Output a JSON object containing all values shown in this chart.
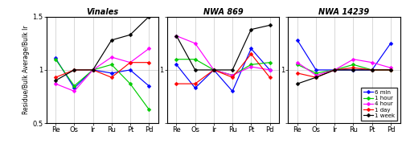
{
  "x_labels": [
    "Re",
    "Os",
    "Ir",
    "Ru",
    "Pt",
    "Pd"
  ],
  "titles": [
    "Vinales",
    "NWA 869",
    "NWA 14239"
  ],
  "ylabel": "Residue/Bulk Average/Bulk Ir",
  "ylim": [
    0.5,
    1.5
  ],
  "yticks": [
    0.5,
    1.0,
    1.5
  ],
  "colors": {
    "6 min": "#0000FF",
    "1 hour": "#00CC00",
    "4 hour": "#FF00FF",
    "1 day": "#FF0000",
    "1 week": "#000000"
  },
  "legend_labels": [
    "6 min",
    "1 hour",
    "4 hour",
    "1 day",
    "1 week"
  ],
  "panels": {
    "Vinales": {
      "6 min": [
        1.11,
        0.83,
        1.0,
        0.97,
        1.0,
        0.85
      ],
      "1 hour": [
        1.1,
        0.85,
        1.0,
        1.05,
        0.87,
        0.63
      ],
      "4 hour": [
        0.87,
        0.8,
        1.0,
        1.12,
        1.07,
        1.2
      ],
      "1 day": [
        0.93,
        1.0,
        1.0,
        0.93,
        1.07,
        1.07
      ],
      "1 week": [
        0.9,
        1.0,
        1.0,
        1.28,
        1.33,
        1.5
      ]
    },
    "NWA 869": {
      "6 min": [
        1.05,
        0.83,
        1.0,
        0.8,
        1.2,
        1.0
      ],
      "1 hour": [
        1.1,
        1.1,
        1.0,
        0.95,
        1.05,
        1.07
      ],
      "4 hour": [
        1.32,
        1.25,
        1.0,
        0.95,
        1.03,
        1.0
      ],
      "1 day": [
        0.87,
        0.87,
        1.0,
        0.93,
        1.15,
        0.93
      ],
      "1 week": [
        1.32,
        1.0,
        1.0,
        1.0,
        1.38,
        1.42
      ]
    },
    "NWA 14239": {
      "6 min": [
        1.28,
        1.0,
        1.0,
        1.0,
        1.0,
        1.25
      ],
      "1 hour": [
        1.05,
        0.97,
        1.0,
        1.05,
        1.0,
        1.0
      ],
      "4 hour": [
        1.07,
        0.95,
        1.0,
        1.1,
        1.07,
        1.02
      ],
      "1 day": [
        0.97,
        0.93,
        1.0,
        1.02,
        1.0,
        1.0
      ],
      "1 week": [
        0.87,
        0.93,
        1.0,
        1.0,
        1.0,
        1.0
      ]
    }
  }
}
